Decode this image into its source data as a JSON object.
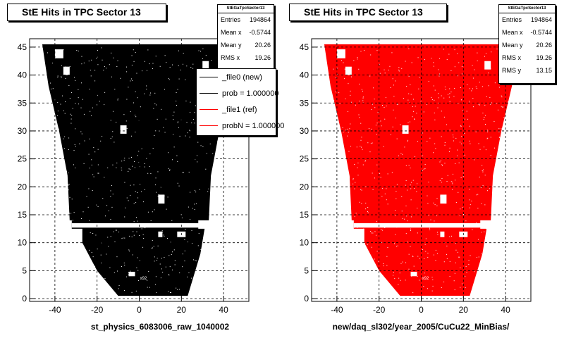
{
  "chart_data": [
    {
      "type": "scatter",
      "title": "StE Hits in TPC Sector 13",
      "xlabel": "st_physics_6083006_raw_1040002",
      "ylabel": "",
      "xlim": [
        -52,
        52
      ],
      "ylim": [
        -0.5,
        46.5
      ],
      "xticks": [
        -40,
        -20,
        0,
        20,
        40
      ],
      "yticks": [
        0,
        5,
        10,
        15,
        20,
        25,
        30,
        35,
        40,
        45
      ],
      "grid": true,
      "color": "#000000",
      "stats": {
        "name": "StEGaTpcSector13",
        "rows": [
          {
            "label": "Entries",
            "value": "194864"
          },
          {
            "label": "Mean x",
            "value": "-0.5744"
          },
          {
            "label": "Mean y",
            "value": "20.26"
          },
          {
            "label": "RMS x",
            "value": "19.26"
          }
        ]
      },
      "legend": {
        "placement": "top-right",
        "entries": [
          {
            "label": "_file0 (new)",
            "color": "#000000"
          },
          {
            "label": "prob = 1.000000",
            "color": "#000000"
          },
          {
            "label": "_file1 (ref)",
            "color": "#ff0000"
          },
          {
            "label": "probN = 1.000000",
            "color": "#ff0000"
          }
        ]
      },
      "annotation": "x92"
    },
    {
      "type": "scatter",
      "title": "StE Hits in TPC Sector 13",
      "xlabel": "new/daq_sl302/year_2005/CuCu22_MinBias/",
      "ylabel": "",
      "xlim": [
        -52,
        52
      ],
      "ylim": [
        -0.5,
        46.5
      ],
      "xticks": [
        -40,
        -20,
        0,
        20,
        40
      ],
      "yticks": [
        0,
        5,
        10,
        15,
        20,
        25,
        30,
        35,
        40,
        45
      ],
      "grid": true,
      "color": "#ff0000",
      "stats": {
        "name": "StEGaTpcSector13",
        "rows": [
          {
            "label": "Entries",
            "value": "194864"
          },
          {
            "label": "Mean x",
            "value": "-0.5744"
          },
          {
            "label": "Mean y",
            "value": "20.26"
          },
          {
            "label": "RMS x",
            "value": "19.26"
          },
          {
            "label": "RMS y",
            "value": "13.15"
          }
        ]
      },
      "annotation": "x92"
    }
  ]
}
